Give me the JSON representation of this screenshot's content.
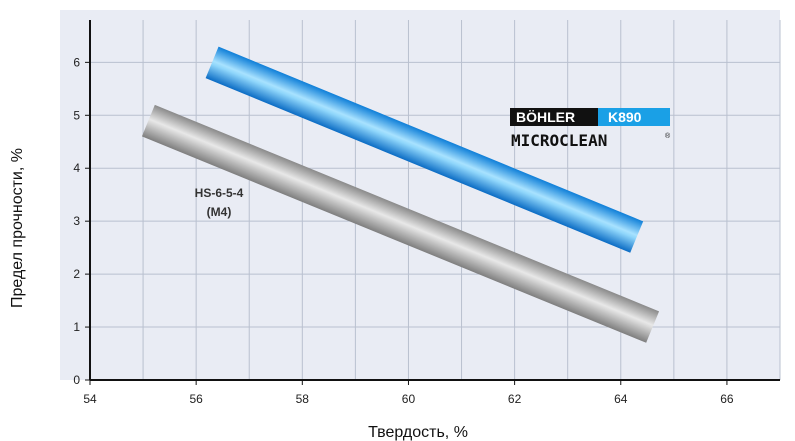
{
  "chart_data": {
    "type": "line",
    "title": "",
    "xlabel": "Твердость, %",
    "ylabel": "Предел прочности, %",
    "xlim": [
      54,
      67
    ],
    "ylim": [
      0,
      6.8
    ],
    "xticks": [
      54,
      56,
      58,
      60,
      62,
      64,
      66
    ],
    "yticks": [
      0,
      1,
      2,
      3,
      4,
      5,
      6
    ],
    "grid": true,
    "background": "#e9ecf4",
    "series": [
      {
        "name": "BÖHLER K890 MICROCLEAN",
        "x": [
          56.3,
          64.3
        ],
        "y": [
          6.0,
          2.7
        ],
        "color": "#1aa0e6"
      },
      {
        "name": "HS-6-5-4 (M4)",
        "x": [
          55.1,
          64.6
        ],
        "y": [
          4.9,
          1.0
        ],
        "color": "#9a9a9a"
      }
    ],
    "annotations": [
      {
        "text_line1": "HS-6-5-4",
        "text_line2": "(M4)"
      }
    ],
    "legend": {
      "brand": "BÖHLER",
      "model": "K890",
      "sub": "MICROCLEAN",
      "mark": "®"
    }
  }
}
